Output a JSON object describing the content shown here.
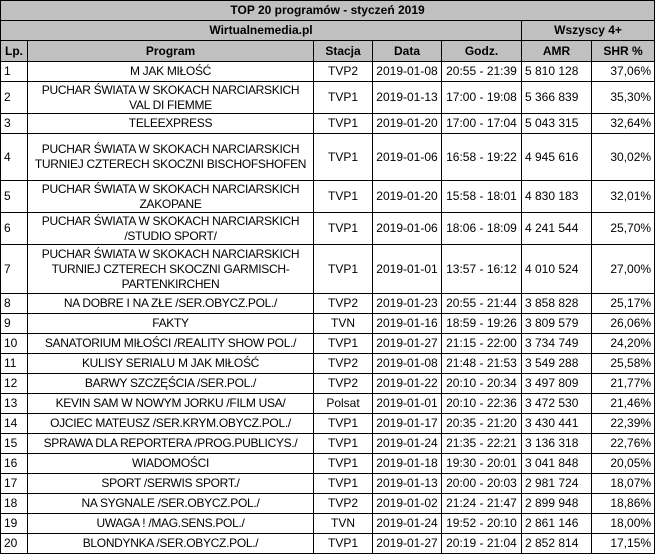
{
  "title": "TOP 20 programów - styczeń 2019",
  "source": "Wirtualnemedia.pl",
  "group_label": "Wszyscy 4+",
  "columns": [
    "Lp.",
    "Program",
    "Stacja",
    "Data",
    "Godz.",
    "AMR",
    "SHR %"
  ],
  "header_bg": "#c0c0c0",
  "rows": [
    {
      "lp": "1",
      "program": [
        "M JAK MIŁOŚĆ"
      ],
      "station": "TVP2",
      "date": "2019-01-08",
      "time": "20:55 - 21:39",
      "amr": "5 810 128",
      "shr": "37,06%"
    },
    {
      "lp": "2",
      "program": [
        "PUCHAR ŚWIATA W SKOKACH NARCIARSKICH",
        "VAL DI FIEMME"
      ],
      "station": "TVP1",
      "date": "2019-01-13",
      "time": "17:00 - 19:08",
      "amr": "5 366 839",
      "shr": "35,30%"
    },
    {
      "lp": "3",
      "program": [
        "TELEEXPRESS"
      ],
      "station": "TVP1",
      "date": "2019-01-20",
      "time": "17:00 - 17:04",
      "amr": "5 043 315",
      "shr": "32,64%"
    },
    {
      "lp": "4",
      "program": [
        "PUCHAR ŚWIATA W SKOKACH NARCIARSKICH",
        "TURNIEJ CZTERECH SKOCZNI BISCHOFSHOFEN"
      ],
      "station": "TVP1",
      "date": "2019-01-06",
      "time": "16:58 - 19:22",
      "amr": "4 945 616",
      "shr": "30,02%"
    },
    {
      "lp": "5",
      "program": [
        "PUCHAR ŚWIATA W SKOKACH NARCIARSKICH",
        "ZAKOPANE"
      ],
      "station": "TVP1",
      "date": "2019-01-20",
      "time": "15:58 - 18:01",
      "amr": "4 830 183",
      "shr": "32,01%"
    },
    {
      "lp": "6",
      "program": [
        "PUCHAR ŚWIATA W SKOKACH NARCIARSKICH",
        "/STUDIO SPORT/"
      ],
      "station": "TVP1",
      "date": "2019-01-06",
      "time": "18:06 - 18:09",
      "amr": "4 241 544",
      "shr": "25,70%"
    },
    {
      "lp": "7",
      "program": [
        "PUCHAR ŚWIATA W SKOKACH NARCIARSKICH",
        "TURNIEJ CZTERECH SKOCZNI GARMISCH-",
        "PARTENKIRCHEN"
      ],
      "station": "TVP1",
      "date": "2019-01-01",
      "time": "13:57 - 16:12",
      "amr": "4 010 524",
      "shr": "27,00%"
    },
    {
      "lp": "8",
      "program": [
        "NA DOBRE I NA ZŁE /SER.OBYCZ.POL./"
      ],
      "station": "TVP2",
      "date": "2019-01-23",
      "time": "20:55 - 21:44",
      "amr": "3 858 828",
      "shr": "25,17%"
    },
    {
      "lp": "9",
      "program": [
        "FAKTY"
      ],
      "station": "TVN",
      "date": "2019-01-16",
      "time": "18:59 - 19:26",
      "amr": "3 809 579",
      "shr": "26,06%"
    },
    {
      "lp": "10",
      "program": [
        "SANATORIUM MIŁOŚCI /REALITY SHOW POL./"
      ],
      "station": "TVP1",
      "date": "2019-01-27",
      "time": "21:15 - 22:00",
      "amr": "3 734 749",
      "shr": "24,20%"
    },
    {
      "lp": "11",
      "program": [
        "KULISY SERIALU M JAK MIŁOŚĆ"
      ],
      "station": "TVP2",
      "date": "2019-01-08",
      "time": "21:48 - 21:53",
      "amr": "3 549 288",
      "shr": "25,58%"
    },
    {
      "lp": "12",
      "program": [
        "BARWY SZCZĘŚCIA /SER.POL./"
      ],
      "station": "TVP2",
      "date": "2019-01-22",
      "time": "20:10 - 20:34",
      "amr": "3 497 809",
      "shr": "21,77%"
    },
    {
      "lp": "13",
      "program": [
        "KEVIN SAM W NOWYM JORKU /FILM USA/"
      ],
      "station": "Polsat",
      "date": "2019-01-01",
      "time": "20:10 - 22:36",
      "amr": "3 472 530",
      "shr": "21,46%"
    },
    {
      "lp": "14",
      "program": [
        "OJCIEC MATEUSZ /SER.KRYM.OBYCZ.POL./"
      ],
      "station": "TVP1",
      "date": "2019-01-17",
      "time": "20:35 - 21:20",
      "amr": "3 430 441",
      "shr": "22,39%"
    },
    {
      "lp": "15",
      "program": [
        "SPRAWA DLA REPORTERA /PROG.PUBLICYS./"
      ],
      "station": "TVP1",
      "date": "2019-01-24",
      "time": "21:35 - 22:21",
      "amr": "3 136 318",
      "shr": "22,76%"
    },
    {
      "lp": "16",
      "program": [
        "WIADOMOŚCI"
      ],
      "station": "TVP1",
      "date": "2019-01-18",
      "time": "19:30 - 20:01",
      "amr": "3 041 848",
      "shr": "20,05%"
    },
    {
      "lp": "17",
      "program": [
        "SPORT /SERWIS SPORT./"
      ],
      "station": "TVP1",
      "date": "2019-01-13",
      "time": "20:00 - 20:03",
      "amr": "2 981 724",
      "shr": "18,07%"
    },
    {
      "lp": "18",
      "program": [
        "NA SYGNALE /SER.OBYCZ.POL./"
      ],
      "station": "TVP2",
      "date": "2019-01-02",
      "time": "21:24 - 21:47",
      "amr": "2 899 948",
      "shr": "18,86%"
    },
    {
      "lp": "19",
      "program": [
        "UWAGA ! /MAG.SENS.POL./"
      ],
      "station": "TVN",
      "date": "2019-01-24",
      "time": "19:52 - 20:10",
      "amr": "2 861 146",
      "shr": "18,00%"
    },
    {
      "lp": "20",
      "program": [
        "BLONDYNKA /SER.OBYCZ.POL./"
      ],
      "station": "TVP1",
      "date": "2019-01-27",
      "time": "20:19 - 21:04",
      "amr": "2 852 814",
      "shr": "17,15%"
    }
  ]
}
